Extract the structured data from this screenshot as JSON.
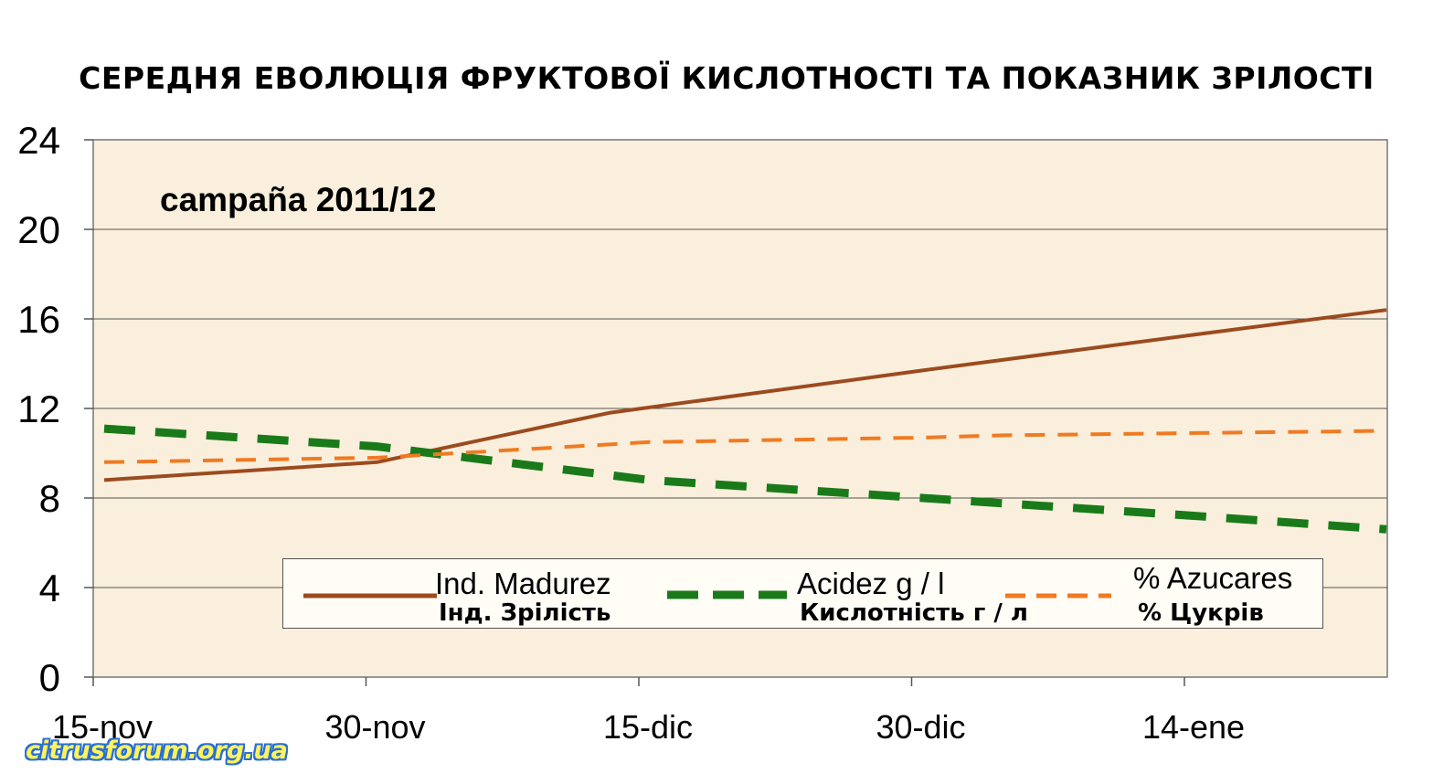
{
  "title": "СЕРЕДНЯ ЕВОЛЮЦІЯ ФРУКТОВОЇ КИСЛОТНОСТІ ТА ПОКАЗНИК ЗРІЛОСТІ",
  "campaign": "campaña 2011/12",
  "watermark": "citrusforum.org.ua",
  "colors": {
    "plot_background": "#f9efdc",
    "madurez": "#9c4a1f",
    "acidez": "#1a7a1a",
    "azucares": "#f07a22"
  },
  "legend": {
    "madurez_label": "Ind. Madurez",
    "madurez_sub": "Інд. Зрілість",
    "acidez_label": "Acidez g / l",
    "acidez_sub": "Кислотність г / л",
    "azucares_label": "% Azucares",
    "azucares_sub": "% Цукрів"
  },
  "chart_data": {
    "type": "line",
    "x": [
      "15-nov",
      "30-nov",
      "15-dic",
      "30-dic",
      "14-ene",
      ""
    ],
    "x_ticks": [
      "15-nov",
      "30-nov",
      "15-dic",
      "30-dic",
      "14-ene"
    ],
    "ylim": [
      0,
      24
    ],
    "y_ticks": [
      0,
      4,
      8,
      12,
      16,
      20,
      24
    ],
    "grid": true,
    "legend_position": "bottom-center",
    "series": [
      {
        "name": "Ind. Madurez",
        "style": "solid",
        "color": "#9c4a1f",
        "points": [
          [
            0,
            8.8
          ],
          [
            1,
            9.6
          ],
          [
            1.85,
            11.8
          ],
          [
            3,
            13.7
          ],
          [
            4,
            15.3
          ],
          [
            4.7,
            16.4
          ]
        ]
      },
      {
        "name": "Acidez g / l",
        "style": "dashed",
        "color": "#1a7a1a",
        "points": [
          [
            0,
            11.1
          ],
          [
            1,
            10.3
          ],
          [
            2,
            8.8
          ],
          [
            3,
            8.0
          ],
          [
            4,
            7.2
          ],
          [
            4.7,
            6.6
          ]
        ]
      },
      {
        "name": "% Azucares",
        "style": "dashed",
        "color": "#f07a22",
        "points": [
          [
            0,
            9.6
          ],
          [
            1,
            9.8
          ],
          [
            2,
            10.5
          ],
          [
            3,
            10.7
          ],
          [
            3.3,
            10.8
          ],
          [
            4,
            10.9
          ],
          [
            4.7,
            11.0
          ]
        ]
      }
    ]
  }
}
